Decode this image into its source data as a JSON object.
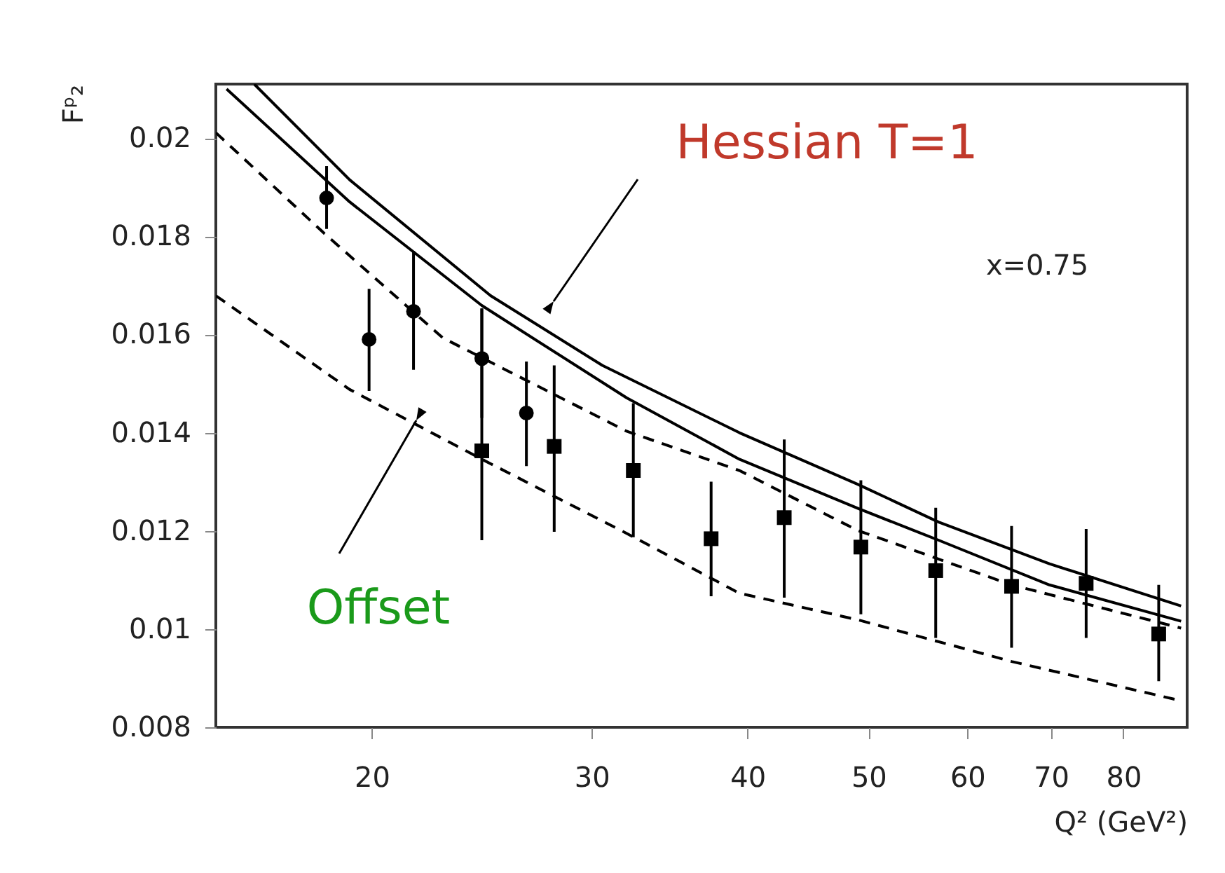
{
  "chart_data": {
    "type": "line",
    "xlabel": "Q² (GeV²)",
    "ylabel": "Fᵖ₂",
    "log": "x",
    "grid": false,
    "xlim": [
      15,
      90
    ],
    "xticks": [
      20,
      30,
      40,
      50,
      60,
      70,
      80
    ],
    "ylim": [
      0.008,
      0.0211
    ],
    "yticks": [
      0.008,
      0.01,
      0.012,
      0.014,
      0.016,
      0.018,
      0.02
    ],
    "annotations": [
      "Hessian T=1",
      "Offset",
      "x=0.75"
    ],
    "series": [
      {
        "color": "#000000",
        "line_style": "solid",
        "x": [
          16.1,
          19.2,
          24.9,
          30.6,
          39.4,
          49.0,
          56.9,
          69.8,
          89.0
        ],
        "values": [
          0.0211,
          0.01915,
          0.01679,
          0.01537,
          0.014,
          0.01295,
          0.01218,
          0.01133,
          0.01047
        ]
      },
      {
        "color": "#000000",
        "line_style": "solid",
        "x": [
          15.3,
          19.2,
          24.5,
          32.0,
          39.4,
          49.0,
          56.9,
          69.8,
          89.0
        ],
        "values": [
          0.021,
          0.0187,
          0.01659,
          0.01471,
          0.01346,
          0.01246,
          0.01181,
          0.0109,
          0.01016
        ]
      },
      {
        "color": "#000000",
        "line_style": "dashed",
        "x": [
          15.0,
          18.3,
          22.8,
          32.0,
          39.4,
          49.0,
          65.1,
          89.0
        ],
        "values": [
          0.02011,
          0.01807,
          0.01593,
          0.01403,
          0.01323,
          0.01201,
          0.0109,
          0.01002
        ]
      },
      {
        "color": "#000000",
        "line_style": "dashed",
        "x": [
          15.0,
          19.2,
          24.5,
          32.0,
          39.4,
          49.0,
          65.1,
          89.0
        ],
        "values": [
          0.01679,
          0.01488,
          0.01346,
          0.01195,
          0.01073,
          0.01019,
          0.00934,
          0.00854
        ]
      },
      {
        "type": "scatter",
        "color": "#000000",
        "marker": "circle",
        "x": [
          18.4,
          19.9,
          21.6,
          24.5,
          26.6
        ],
        "values": [
          0.01878,
          0.0159,
          0.01647,
          0.01551,
          0.0144
        ],
        "errors": [
          [
            0.01815,
            0.01943
          ],
          [
            0.01485,
            0.01693
          ],
          [
            0.01528,
            0.0177
          ],
          [
            0.0143,
            0.01653
          ],
          [
            0.01332,
            0.01545
          ]
        ]
      },
      {
        "type": "scatter",
        "color": "#000000",
        "marker": "square",
        "x": [
          24.5,
          28.0,
          32.4,
          37.4,
          42.8,
          49.3,
          56.6,
          65.1,
          74.7,
          85.4
        ],
        "values": [
          0.01363,
          0.01372,
          0.01323,
          0.01184,
          0.01227,
          0.01167,
          0.01119,
          0.01087,
          0.01093,
          0.0099
        ],
        "errors": [
          [
            0.01181,
            0.01653
          ],
          [
            0.01198,
            0.01537
          ],
          [
            0.01187,
            0.0146
          ],
          [
            0.01067,
            0.013
          ],
          [
            0.01064,
            0.01386
          ],
          [
            0.0103,
            0.01303
          ],
          [
            0.00982,
            0.01247
          ],
          [
            0.00962,
            0.0121
          ],
          [
            0.00982,
            0.01204
          ],
          [
            0.00894,
            0.0109
          ]
        ]
      }
    ]
  }
}
